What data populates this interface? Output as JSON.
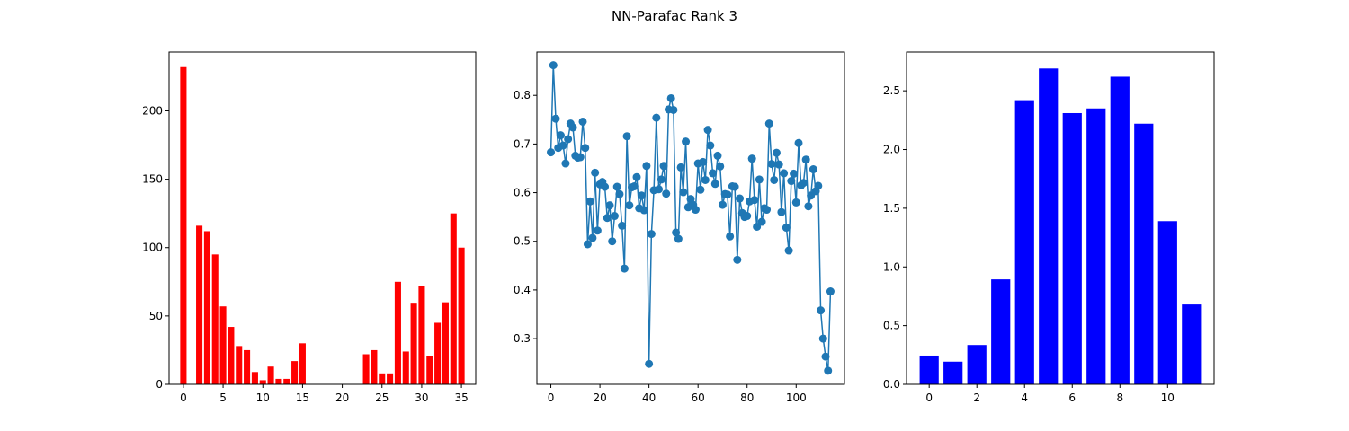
{
  "figure": {
    "title": "NN-Parafac Rank 3"
  },
  "chart_data": [
    {
      "type": "bar",
      "color": "#ff0000",
      "title": "",
      "xlabel": "",
      "ylabel": "",
      "grid": false,
      "xlim": [
        -1.8,
        36.8
      ],
      "ylim": [
        0,
        243
      ],
      "xticks": [
        0,
        5,
        10,
        15,
        20,
        25,
        30,
        35
      ],
      "yticks": [
        0,
        50,
        100,
        150,
        200
      ],
      "categories": [
        0,
        1,
        2,
        3,
        4,
        5,
        6,
        7,
        8,
        9,
        10,
        11,
        12,
        13,
        14,
        15,
        16,
        17,
        18,
        19,
        20,
        21,
        22,
        23,
        24,
        25,
        26,
        27,
        28,
        29,
        30,
        31,
        32,
        33,
        34,
        35
      ],
      "values": [
        232,
        0,
        116,
        112,
        95,
        57,
        42,
        28,
        25,
        9,
        3,
        13,
        4,
        4,
        17,
        30,
        0,
        0,
        0,
        0,
        0,
        0,
        0,
        22,
        25,
        8,
        8,
        75,
        24,
        59,
        72,
        21,
        45,
        60,
        125,
        100
      ]
    },
    {
      "type": "line",
      "color": "#1f77b4",
      "marker": "circle",
      "title": "",
      "xlabel": "",
      "ylabel": "",
      "grid": false,
      "xlim": [
        -5.7,
        119.7
      ],
      "ylim": [
        0.206,
        0.889
      ],
      "xticks": [
        0,
        20,
        40,
        60,
        80,
        100
      ],
      "yticks": [
        0.3,
        0.4,
        0.5,
        0.6,
        0.7,
        0.8
      ],
      "values": [
        0.683,
        0.862,
        0.752,
        0.692,
        0.718,
        0.697,
        0.66,
        0.71,
        0.742,
        0.734,
        0.676,
        0.672,
        0.673,
        0.746,
        0.692,
        0.494,
        0.582,
        0.507,
        0.641,
        0.522,
        0.617,
        0.622,
        0.612,
        0.548,
        0.574,
        0.5,
        0.552,
        0.612,
        0.597,
        0.532,
        0.444,
        0.716,
        0.574,
        0.611,
        0.613,
        0.632,
        0.568,
        0.594,
        0.564,
        0.655,
        0.248,
        0.515,
        0.605,
        0.754,
        0.607,
        0.627,
        0.655,
        0.598,
        0.771,
        0.794,
        0.77,
        0.518,
        0.505,
        0.652,
        0.601,
        0.705,
        0.57,
        0.587,
        0.575,
        0.565,
        0.66,
        0.606,
        0.663,
        0.626,
        0.729,
        0.697,
        0.64,
        0.618,
        0.676,
        0.654,
        0.575,
        0.597,
        0.596,
        0.51,
        0.613,
        0.612,
        0.462,
        0.588,
        0.558,
        0.55,
        0.552,
        0.582,
        0.67,
        0.585,
        0.53,
        0.627,
        0.54,
        0.568,
        0.565,
        0.742,
        0.659,
        0.626,
        0.682,
        0.658,
        0.56,
        0.64,
        0.528,
        0.481,
        0.624,
        0.639,
        0.58,
        0.702,
        0.615,
        0.62,
        0.668,
        0.572,
        0.594,
        0.648,
        0.603,
        0.614,
        0.358,
        0.3,
        0.263,
        0.234,
        0.397
      ]
    },
    {
      "type": "bar",
      "color": "#0000ff",
      "title": "",
      "xlabel": "",
      "ylabel": "",
      "grid": false,
      "xlim": [
        -0.95,
        11.95
      ],
      "ylim": [
        0,
        2.83
      ],
      "xticks": [
        0,
        2,
        4,
        6,
        8,
        10
      ],
      "yticks": [
        0.0,
        0.5,
        1.0,
        1.5,
        2.0,
        2.5
      ],
      "ytick_labels": [
        "0.0",
        "0.5",
        "1.0",
        "1.5",
        "2.0",
        "2.5"
      ],
      "categories": [
        0,
        1,
        2,
        3,
        4,
        5,
        6,
        7,
        8,
        9,
        10,
        11
      ],
      "values": [
        0.245,
        0.193,
        0.335,
        0.894,
        2.42,
        2.69,
        2.31,
        2.35,
        2.62,
        2.22,
        1.39,
        0.68
      ]
    }
  ]
}
